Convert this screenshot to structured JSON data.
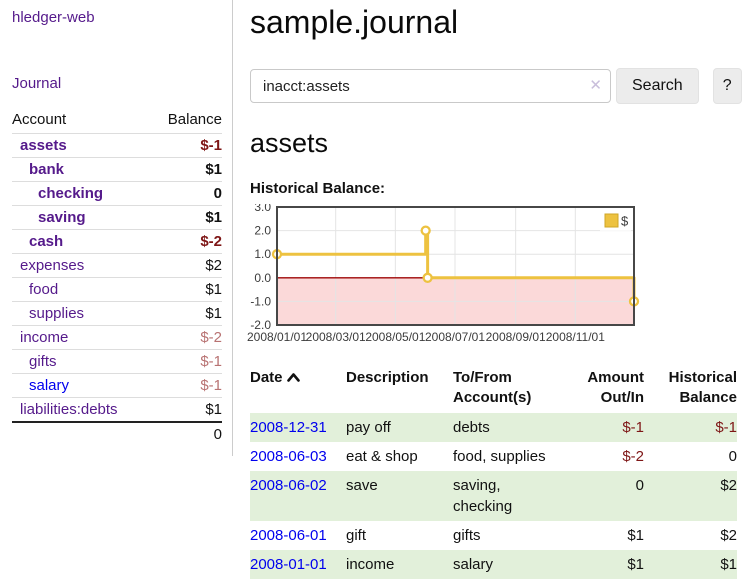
{
  "app": {
    "title": "hledger-web"
  },
  "sidebar": {
    "journal_link": "Journal",
    "accounts": {
      "header": {
        "account": "Account",
        "balance": "Balance"
      },
      "rows": [
        {
          "label": "assets",
          "depth": 1,
          "bold": true,
          "balance": "$-1",
          "balance_class": "neg-strong",
          "link_class": "purple"
        },
        {
          "label": "bank",
          "depth": 2,
          "bold": true,
          "balance": "$1",
          "balance_class": "pos",
          "link_class": "purple"
        },
        {
          "label": "checking",
          "depth": 3,
          "bold": true,
          "balance": "0",
          "balance_class": "pos",
          "link_class": "purple"
        },
        {
          "label": "saving",
          "depth": 3,
          "bold": true,
          "balance": "$1",
          "balance_class": "pos",
          "link_class": "purple"
        },
        {
          "label": "cash",
          "depth": 2,
          "bold": true,
          "balance": "$-2",
          "balance_class": "neg-strong",
          "link_class": "purple"
        },
        {
          "label": "expenses",
          "depth": 1,
          "bold": false,
          "balance": "$2",
          "balance_class": "pos",
          "link_class": "purple"
        },
        {
          "label": "food",
          "depth": 2,
          "bold": false,
          "balance": "$1",
          "balance_class": "pos",
          "link_class": "purple"
        },
        {
          "label": "supplies",
          "depth": 2,
          "bold": false,
          "balance": "$1",
          "balance_class": "pos",
          "link_class": "purple"
        },
        {
          "label": "income",
          "depth": 1,
          "bold": false,
          "balance": "$-2",
          "balance_class": "neg-soft",
          "link_class": "purple"
        },
        {
          "label": "gifts",
          "depth": 2,
          "bold": false,
          "balance": "$-1",
          "balance_class": "neg-soft",
          "link_class": "purple"
        },
        {
          "label": "salary",
          "depth": 2,
          "bold": false,
          "balance": "$-1",
          "balance_class": "neg-soft",
          "link_class": "blue"
        },
        {
          "label": "liabilities:debts",
          "depth": 1,
          "bold": false,
          "balance": "$1",
          "balance_class": "pos",
          "link_class": "purple"
        }
      ],
      "total": "0"
    }
  },
  "main": {
    "title": "sample.journal",
    "search": {
      "value": "inacct:assets",
      "clear_icon": "✕",
      "search_button": "Search",
      "help_button": "?"
    },
    "account_heading": "assets",
    "chart_label": "Historical Balance:",
    "register": {
      "headers": {
        "date": "Date",
        "description": "Description",
        "accounts_line1": "To/From",
        "accounts_line2": "Account(s)",
        "amount_line1": "Amount",
        "amount_line2": "Out/In",
        "balance_line1": "Historical",
        "balance_line2": "Balance"
      },
      "rows": [
        {
          "date": "2008-12-31",
          "description": "pay off",
          "accounts": "debts",
          "amount": "$-1",
          "amount_neg": true,
          "balance": "$-1",
          "balance_neg": true
        },
        {
          "date": "2008-06-03",
          "description": "eat & shop",
          "accounts": "food, supplies",
          "amount": "$-2",
          "amount_neg": true,
          "balance": "0",
          "balance_neg": false
        },
        {
          "date": "2008-06-02",
          "description": "save",
          "accounts": "saving, checking",
          "amount": "0",
          "amount_neg": false,
          "balance": "$2",
          "balance_neg": false
        },
        {
          "date": "2008-06-01",
          "description": "gift",
          "accounts": "gifts",
          "amount": "$1",
          "amount_neg": false,
          "balance": "$2",
          "balance_neg": false
        },
        {
          "date": "2008-01-01",
          "description": "income",
          "accounts": "salary",
          "amount": "$1",
          "amount_neg": false,
          "balance": "$1",
          "balance_neg": false
        }
      ]
    }
  },
  "chart_data": {
    "type": "line",
    "title": "Historical Balance:",
    "series": [
      {
        "name": "$",
        "color": "#EDC240",
        "step": true,
        "points": [
          {
            "date": "2008-01-01",
            "value": 1
          },
          {
            "date": "2008-06-01",
            "value": 2
          },
          {
            "date": "2008-06-03",
            "value": 0
          },
          {
            "date": "2008-12-31",
            "value": -1
          }
        ]
      }
    ],
    "x_range": [
      "2008-01-01",
      "2008-12-31"
    ],
    "x_ticks": [
      "2008/01/01",
      "2008/03/01",
      "2008/05/01",
      "2008/07/01",
      "2008/09/01",
      "2008/11/01"
    ],
    "y_ticks": [
      3.0,
      2.0,
      1.0,
      0.0,
      -1.0,
      -2.0
    ],
    "ylim": [
      -2,
      3
    ],
    "grid": true,
    "legend": {
      "label": "$",
      "position": "top-right"
    },
    "colors": {
      "negative_region": "#fbd9d9",
      "zero_line": "#9e0505",
      "plot_border": "#474747",
      "gridline": "#e4e4e4",
      "marker_fill": "#ffffff",
      "legend_square_border": "#cfa626",
      "axis_text": "#3c3c3c"
    }
  }
}
